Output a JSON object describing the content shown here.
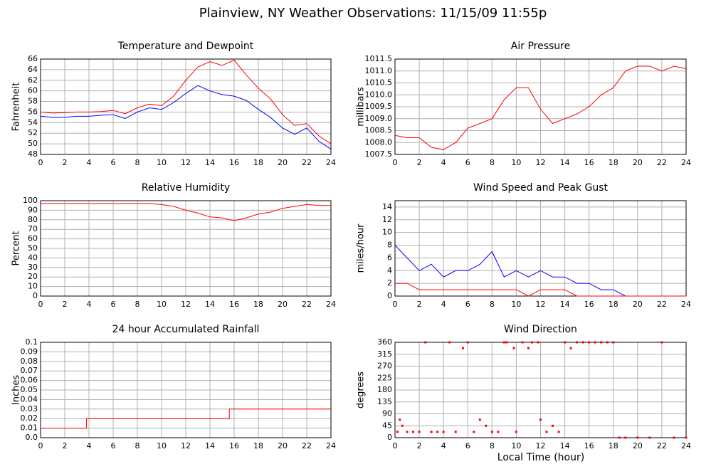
{
  "title": "Plainview, NY Weather Observations: 11/15/09 11:55p",
  "x_axis_label": "Local Time (hour)",
  "chart_data": [
    {
      "type": "line",
      "title": "Temperature and Dewpoint",
      "ylabel": "Fahrenheit",
      "x": [
        0,
        1,
        2,
        3,
        4,
        5,
        6,
        7,
        8,
        9,
        10,
        11,
        12,
        13,
        14,
        15,
        16,
        17,
        18,
        19,
        20,
        21,
        22,
        23,
        24
      ],
      "series": [
        {
          "name": "Temperature",
          "color": "#ff0000",
          "values": [
            56,
            55.8,
            55.9,
            56,
            56,
            56.1,
            56.3,
            55.7,
            56.8,
            57.5,
            57.2,
            59,
            62,
            64.5,
            65.5,
            64.8,
            65.8,
            63,
            60.5,
            58.5,
            55.5,
            53.5,
            53.8,
            51.5,
            50
          ]
        },
        {
          "name": "Dewpoint",
          "color": "#0000ff",
          "values": [
            55.2,
            55,
            55,
            55.2,
            55.2,
            55.4,
            55.5,
            54.8,
            56,
            56.8,
            56.5,
            57.8,
            59.5,
            61,
            60,
            59.3,
            59,
            58.2,
            56.5,
            55,
            53,
            51.8,
            53,
            50.5,
            49
          ]
        }
      ],
      "xlim": [
        0,
        24
      ],
      "xticks": [
        0,
        2,
        4,
        6,
        8,
        10,
        12,
        14,
        16,
        18,
        20,
        22,
        24
      ],
      "ylim": [
        48,
        66
      ],
      "yticks": [
        48,
        50,
        52,
        54,
        56,
        58,
        60,
        62,
        64,
        66
      ],
      "grid": true
    },
    {
      "type": "line",
      "title": "Air Pressure",
      "ylabel": "millibars",
      "x": [
        0,
        1,
        2,
        3,
        4,
        5,
        6,
        7,
        8,
        9,
        10,
        11,
        12,
        13,
        14,
        15,
        16,
        17,
        18,
        19,
        20,
        21,
        22,
        23,
        24
      ],
      "series": [
        {
          "name": "Pressure",
          "color": "#ff0000",
          "values": [
            1008.3,
            1008.2,
            1008.2,
            1007.8,
            1007.7,
            1008.0,
            1008.6,
            1008.8,
            1009.0,
            1009.8,
            1010.3,
            1010.3,
            1009.4,
            1008.8,
            1009.0,
            1009.2,
            1009.5,
            1010.0,
            1010.3,
            1011.0,
            1011.2,
            1011.2,
            1011.0,
            1011.2,
            1011.1
          ]
        }
      ],
      "xlim": [
        0,
        24
      ],
      "xticks": [
        0,
        2,
        4,
        6,
        8,
        10,
        12,
        14,
        16,
        18,
        20,
        22,
        24
      ],
      "ylim": [
        1007.5,
        1011.5
      ],
      "yticks": [
        1007.5,
        {
          "value": 1008,
          "label": "1008.0"
        },
        1008.5,
        {
          "value": 1009,
          "label": "1009.0"
        },
        1009.5,
        {
          "value": 1010,
          "label": "1010.0"
        },
        1010.5,
        {
          "value": 1011,
          "label": "1011.0"
        },
        1011.5
      ],
      "grid": true
    },
    {
      "type": "line",
      "title": "Relative Humidity",
      "ylabel": "Percent",
      "x": [
        0,
        1,
        2,
        3,
        4,
        5,
        6,
        7,
        8,
        9,
        10,
        11,
        12,
        13,
        14,
        15,
        16,
        17,
        18,
        19,
        20,
        21,
        22,
        23,
        24
      ],
      "series": [
        {
          "name": "Humidity",
          "color": "#ff0000",
          "values": [
            97,
            97,
            97,
            97,
            97,
            97,
            97,
            97,
            97,
            97,
            96,
            94,
            90,
            87,
            83,
            82,
            79,
            82,
            86,
            88,
            92,
            94,
            96,
            95,
            95
          ]
        }
      ],
      "xlim": [
        0,
        24
      ],
      "xticks": [
        0,
        2,
        4,
        6,
        8,
        10,
        12,
        14,
        16,
        18,
        20,
        22,
        24
      ],
      "ylim": [
        0,
        100
      ],
      "yticks": [
        0,
        10,
        20,
        30,
        40,
        50,
        60,
        70,
        80,
        90,
        100
      ],
      "grid": true
    },
    {
      "type": "line",
      "title": "Wind Speed and Peak Gust",
      "ylabel": "miles/hour",
      "x": [
        0,
        1,
        2,
        3,
        4,
        5,
        6,
        7,
        8,
        9,
        10,
        11,
        12,
        13,
        14,
        15,
        16,
        17,
        18,
        19,
        20,
        21,
        22,
        23,
        24
      ],
      "series": [
        {
          "name": "Peak Gust",
          "color": "#0000ff",
          "values": [
            8,
            6,
            4,
            5,
            3,
            4,
            4,
            5,
            7,
            3,
            4,
            3,
            4,
            3,
            3,
            2,
            2,
            1,
            1,
            0,
            0,
            0,
            0,
            0,
            0
          ]
        },
        {
          "name": "Wind Speed",
          "color": "#ff0000",
          "values": [
            2,
            2,
            1,
            1,
            1,
            1,
            1,
            1,
            1,
            1,
            1,
            0,
            1,
            1,
            1,
            0,
            0,
            0,
            0,
            0,
            0,
            0,
            0,
            0,
            0
          ]
        }
      ],
      "xlim": [
        0,
        24
      ],
      "xticks": [
        0,
        2,
        4,
        6,
        8,
        10,
        12,
        14,
        16,
        18,
        20,
        22,
        24
      ],
      "ylim": [
        0,
        15
      ],
      "yticks": [
        0,
        2,
        4,
        6,
        8,
        10,
        12,
        14
      ],
      "grid": true
    },
    {
      "type": "line",
      "title": "24 hour Accumulated Rainfall",
      "ylabel": "Inches",
      "x": [
        0,
        3.8,
        3.8,
        15.6,
        15.6,
        24
      ],
      "series": [
        {
          "name": "Rainfall",
          "color": "#ff0000",
          "values": [
            0.01,
            0.01,
            0.02,
            0.02,
            0.03,
            0.03
          ]
        }
      ],
      "xlim": [
        0,
        24
      ],
      "xticks": [
        0,
        2,
        4,
        6,
        8,
        10,
        12,
        14,
        16,
        18,
        20,
        22,
        24
      ],
      "ylim": [
        0,
        0.1
      ],
      "yticks": [
        {
          "value": 0,
          "label": "0.0"
        },
        0.01,
        0.02,
        0.03,
        0.04,
        0.05,
        0.06,
        0.07,
        0.08,
        0.09,
        0.1
      ],
      "grid": true
    },
    {
      "type": "scatter",
      "title": "Wind Direction",
      "ylabel": "degrees",
      "x": [
        0.2,
        0.4,
        0.6,
        1,
        1.5,
        2,
        2.5,
        3,
        3.5,
        4,
        4.5,
        5,
        5.6,
        6,
        6.5,
        7,
        7.5,
        8,
        8.5,
        9,
        9.2,
        9.8,
        10,
        10.5,
        11,
        11.3,
        11.8,
        12,
        12.5,
        13,
        13.5,
        14,
        14.5,
        15,
        15.5,
        16,
        16.5,
        17,
        17.5,
        18,
        18.5,
        19,
        20,
        21,
        22,
        23,
        24
      ],
      "series": [
        {
          "name": "Direction",
          "color": "#ff0000",
          "values": [
            22,
            68,
            45,
            22,
            22,
            22,
            360,
            22,
            22,
            22,
            360,
            22,
            338,
            360,
            22,
            68,
            45,
            22,
            22,
            360,
            360,
            338,
            22,
            360,
            338,
            360,
            360,
            68,
            22,
            45,
            22,
            360,
            338,
            360,
            360,
            360,
            360,
            360,
            360,
            360,
            0,
            0,
            0,
            0,
            360,
            0,
            0
          ]
        }
      ],
      "xlim": [
        0,
        24
      ],
      "xticks": [
        0,
        2,
        4,
        6,
        8,
        10,
        12,
        14,
        16,
        18,
        20,
        22,
        24
      ],
      "ylim": [
        0,
        360
      ],
      "yticks": [
        0,
        45,
        90,
        135,
        180,
        225,
        270,
        315,
        360
      ],
      "grid": true
    }
  ]
}
